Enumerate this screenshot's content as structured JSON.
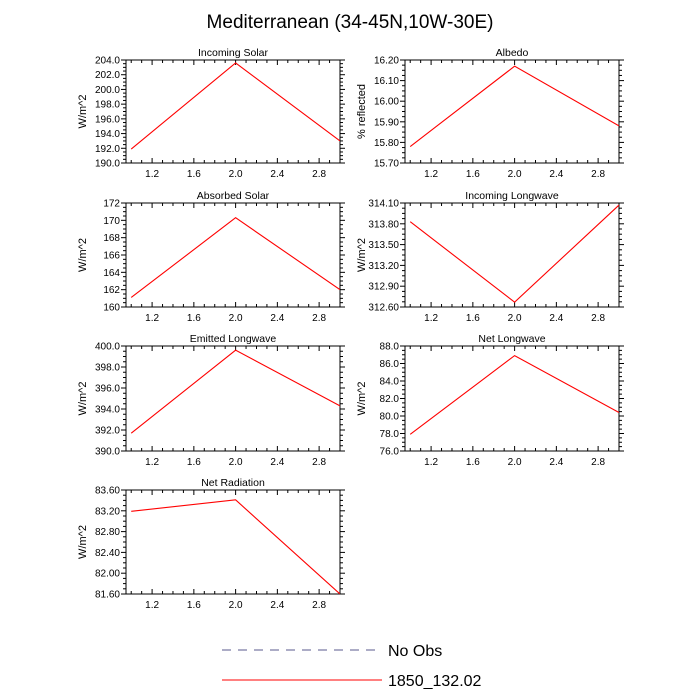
{
  "figure": {
    "title": "Mediterranean (34-45N,10W-30E)",
    "legend": [
      {
        "label": "No Obs",
        "color": "#5a5a8c",
        "dashed": true
      },
      {
        "label": "1850_132.02",
        "color": "#ff0000",
        "dashed": false
      }
    ]
  },
  "chart_data": [
    {
      "type": "line",
      "title": "Incoming Solar",
      "ylabel": "W/m^2",
      "xlim": [
        0.95,
        3.0
      ],
      "ylim": [
        190.0,
        204.0
      ],
      "xticks": [
        1.2,
        1.6,
        2.0,
        2.4,
        2.8
      ],
      "xtick_labels": [
        "1.2",
        "1.6",
        "2.0",
        "2.4",
        "2.8"
      ],
      "yticks": [
        190.0,
        192.0,
        194.0,
        196.0,
        198.0,
        200.0,
        202.0,
        204.0
      ],
      "ytick_labels": [
        "190.0",
        "192.0",
        "194.0",
        "196.0",
        "198.0",
        "200.0",
        "202.0",
        "204.0"
      ],
      "series": [
        {
          "name": "1850_132.02",
          "color": "#ff0000",
          "x": [
            1.0,
            2.0,
            3.0
          ],
          "y": [
            191.9,
            203.6,
            193.0
          ]
        }
      ]
    },
    {
      "type": "line",
      "title": "Albedo",
      "ylabel": "% reflected",
      "xlim": [
        0.95,
        3.0
      ],
      "ylim": [
        15.7,
        16.2
      ],
      "xticks": [
        1.2,
        1.6,
        2.0,
        2.4,
        2.8
      ],
      "xtick_labels": [
        "1.2",
        "1.6",
        "2.0",
        "2.4",
        "2.8"
      ],
      "yticks": [
        15.7,
        15.8,
        15.9,
        16.0,
        16.1,
        16.2
      ],
      "ytick_labels": [
        "15.70",
        "15.80",
        "15.90",
        "16.00",
        "16.10",
        "16.20"
      ],
      "series": [
        {
          "name": "1850_132.02",
          "color": "#ff0000",
          "x": [
            1.0,
            2.0,
            3.0
          ],
          "y": [
            15.78,
            16.17,
            15.88
          ]
        }
      ]
    },
    {
      "type": "line",
      "title": "Absorbed Solar",
      "ylabel": "W/m^2",
      "xlim": [
        0.95,
        3.0
      ],
      "ylim": [
        160,
        172
      ],
      "xticks": [
        1.2,
        1.6,
        2.0,
        2.4,
        2.8
      ],
      "xtick_labels": [
        "1.2",
        "1.6",
        "2.0",
        "2.4",
        "2.8"
      ],
      "yticks": [
        160,
        162,
        164,
        166,
        168,
        170,
        172
      ],
      "ytick_labels": [
        "160",
        "162",
        "164",
        "166",
        "168",
        "170",
        "172"
      ],
      "series": [
        {
          "name": "1850_132.02",
          "color": "#ff0000",
          "x": [
            1.0,
            2.0,
            3.0
          ],
          "y": [
            161.1,
            170.3,
            162.0
          ]
        }
      ]
    },
    {
      "type": "line",
      "title": "Incoming Longwave",
      "ylabel": "W/m^2",
      "xlim": [
        0.95,
        3.0
      ],
      "ylim": [
        312.6,
        314.1
      ],
      "xticks": [
        1.2,
        1.6,
        2.0,
        2.4,
        2.8
      ],
      "xtick_labels": [
        "1.2",
        "1.6",
        "2.0",
        "2.4",
        "2.8"
      ],
      "yticks": [
        312.6,
        312.9,
        313.2,
        313.5,
        313.8,
        314.1
      ],
      "ytick_labels": [
        "312.60",
        "312.90",
        "313.20",
        "313.50",
        "313.80",
        "314.10"
      ],
      "series": [
        {
          "name": "1850_132.02",
          "color": "#ff0000",
          "x": [
            1.0,
            2.0,
            3.0
          ],
          "y": [
            313.83,
            312.67,
            314.07
          ]
        }
      ]
    },
    {
      "type": "line",
      "title": "Emitted Longwave",
      "ylabel": "W/m^2",
      "xlim": [
        0.95,
        3.0
      ],
      "ylim": [
        390.0,
        400.0
      ],
      "xticks": [
        1.2,
        1.6,
        2.0,
        2.4,
        2.8
      ],
      "xtick_labels": [
        "1.2",
        "1.6",
        "2.0",
        "2.4",
        "2.8"
      ],
      "yticks": [
        390.0,
        392.0,
        394.0,
        396.0,
        398.0,
        400.0
      ],
      "ytick_labels": [
        "390.0",
        "392.0",
        "394.0",
        "396.0",
        "398.0",
        "400.0"
      ],
      "series": [
        {
          "name": "1850_132.02",
          "color": "#ff0000",
          "x": [
            1.0,
            2.0,
            3.0
          ],
          "y": [
            391.7,
            399.6,
            394.3
          ]
        }
      ]
    },
    {
      "type": "line",
      "title": "Net Longwave",
      "ylabel": "W/m^2",
      "xlim": [
        0.95,
        3.0
      ],
      "ylim": [
        76.0,
        88.0
      ],
      "xticks": [
        1.2,
        1.6,
        2.0,
        2.4,
        2.8
      ],
      "xtick_labels": [
        "1.2",
        "1.6",
        "2.0",
        "2.4",
        "2.8"
      ],
      "yticks": [
        76.0,
        78.0,
        80.0,
        82.0,
        84.0,
        86.0,
        88.0
      ],
      "ytick_labels": [
        "76.0",
        "78.0",
        "80.0",
        "82.0",
        "84.0",
        "86.0",
        "88.0"
      ],
      "series": [
        {
          "name": "1850_132.02",
          "color": "#ff0000",
          "x": [
            1.0,
            2.0,
            3.0
          ],
          "y": [
            77.9,
            86.9,
            80.4
          ]
        }
      ]
    },
    {
      "type": "line",
      "title": "Net Radiation",
      "ylabel": "W/m^2",
      "xlim": [
        0.95,
        3.0
      ],
      "ylim": [
        81.6,
        83.6
      ],
      "xticks": [
        1.2,
        1.6,
        2.0,
        2.4,
        2.8
      ],
      "xtick_labels": [
        "1.2",
        "1.6",
        "2.0",
        "2.4",
        "2.8"
      ],
      "yticks": [
        81.6,
        82.0,
        82.4,
        82.8,
        83.2,
        83.6
      ],
      "ytick_labels": [
        "81.60",
        "82.00",
        "82.40",
        "82.80",
        "83.20",
        "83.60"
      ],
      "series": [
        {
          "name": "1850_132.02",
          "color": "#ff0000",
          "x": [
            1.0,
            2.0,
            3.0
          ],
          "y": [
            83.19,
            83.41,
            81.6
          ]
        }
      ]
    }
  ]
}
